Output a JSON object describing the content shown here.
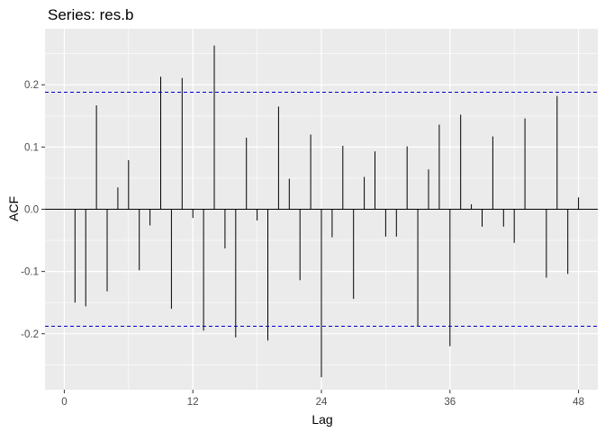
{
  "chart_data": {
    "type": "bar",
    "title": "Series: res.b",
    "xlabel": "Lag",
    "ylabel": "ACF",
    "xlim": [
      -1.8,
      49.8
    ],
    "ylim": [
      -0.29,
      0.29
    ],
    "x_ticks": [
      {
        "value": 0,
        "label": "0"
      },
      {
        "value": 12,
        "label": "12"
      },
      {
        "value": 24,
        "label": "24"
      },
      {
        "value": 36,
        "label": "36"
      },
      {
        "value": 48,
        "label": "48"
      }
    ],
    "y_ticks": [
      {
        "value": -0.2,
        "label": "-0.2"
      },
      {
        "value": -0.1,
        "label": "-0.1"
      },
      {
        "value": 0.0,
        "label": "0.0"
      },
      {
        "value": 0.1,
        "label": "0.1"
      },
      {
        "value": 0.2,
        "label": "0.2"
      }
    ],
    "confidence_bounds": [
      0.188,
      -0.188
    ],
    "grid": true,
    "x": [
      1,
      2,
      3,
      4,
      5,
      6,
      7,
      8,
      9,
      10,
      11,
      12,
      13,
      14,
      15,
      16,
      17,
      18,
      19,
      20,
      21,
      22,
      23,
      24,
      25,
      26,
      27,
      28,
      29,
      30,
      31,
      32,
      33,
      34,
      35,
      36,
      37,
      38,
      39,
      40,
      41,
      42,
      43,
      44,
      45,
      46,
      47,
      48
    ],
    "values": [
      -0.15,
      -0.156,
      0.167,
      -0.132,
      0.035,
      0.079,
      -0.098,
      -0.026,
      0.213,
      -0.16,
      0.211,
      -0.014,
      -0.195,
      0.263,
      -0.063,
      -0.206,
      0.115,
      -0.018,
      -0.211,
      0.165,
      0.049,
      -0.114,
      0.12,
      -0.27,
      -0.045,
      0.102,
      -0.144,
      0.052,
      0.093,
      -0.044,
      -0.044,
      0.101,
      -0.188,
      0.064,
      0.136,
      -0.22,
      0.152,
      0.008,
      -0.028,
      0.117,
      -0.028,
      -0.054,
      0.146,
      0.0,
      -0.11,
      0.182,
      -0.104,
      0.019
    ]
  },
  "colors": {
    "panel": "#ebebeb",
    "grid_major": "#ffffff",
    "bar": "#000000",
    "bounds": "#0000cc",
    "tick_label": "#4d4d4d"
  }
}
